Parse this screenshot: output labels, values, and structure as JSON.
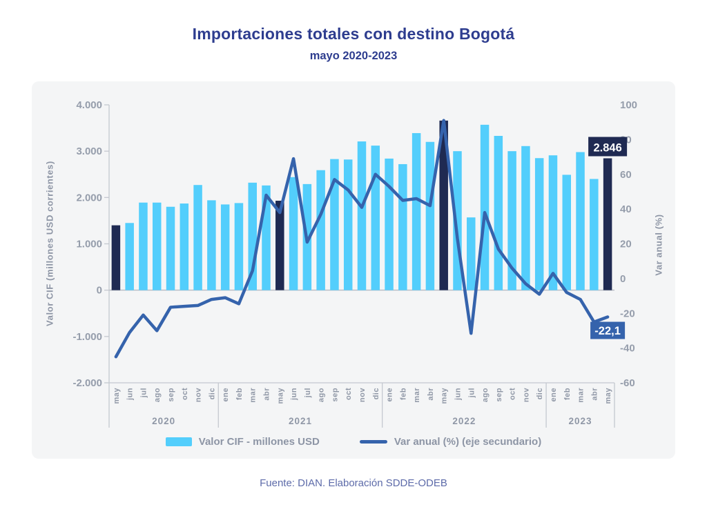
{
  "title": "Importaciones totales con destino Bogotá",
  "subtitle": "mayo 2020-2023",
  "footer": "Fuente: DIAN. Elaboración SDDE-ODEB",
  "colors": {
    "bar": "#53cefc",
    "bar_highlight": "#1f2a52",
    "line": "#3563ac",
    "title": "#2e3d8f",
    "axis_text": "#959dab",
    "axis_line": "#c4c8cf",
    "zero_line": "#b9bec6"
  },
  "chart_data": {
    "type": "combo-bar-line",
    "months": [
      "may",
      "jun",
      "jul",
      "ago",
      "sep",
      "oct",
      "nov",
      "dic",
      "ene",
      "feb",
      "mar",
      "abr",
      "may",
      "jun",
      "jul",
      "ago",
      "sep",
      "oct",
      "nov",
      "dic",
      "ene",
      "feb",
      "mar",
      "abr",
      "may",
      "jun",
      "jul",
      "ago",
      "sep",
      "oct",
      "nov",
      "dic",
      "ene",
      "feb",
      "mar",
      "abr",
      "may"
    ],
    "year_groups": [
      {
        "label": "2020",
        "count": 8
      },
      {
        "label": "2021",
        "count": 12
      },
      {
        "label": "2022",
        "count": 12
      },
      {
        "label": "2023",
        "count": 5
      }
    ],
    "series": [
      {
        "name": "Valor CIF - millones USD",
        "type": "bar",
        "axis": "left",
        "values": [
          1400,
          1450,
          1890,
          1890,
          1800,
          1870,
          2270,
          1940,
          1850,
          1880,
          2320,
          2260,
          1930,
          2440,
          2290,
          2590,
          2830,
          2820,
          3210,
          3120,
          2840,
          2720,
          3390,
          3200,
          3660,
          3000,
          1570,
          3570,
          3330,
          3000,
          3110,
          2850,
          2910,
          2490,
          2980,
          2400,
          2846
        ],
        "highlight_indices": [
          0,
          12,
          24,
          36
        ]
      },
      {
        "name": "Var anual (%) (eje secundario)",
        "type": "line",
        "axis": "right",
        "values": [
          -45,
          -31,
          -21,
          -30,
          -16.5,
          -16,
          -15.5,
          -12,
          -11,
          -14.5,
          4.5,
          48,
          38,
          69,
          21,
          37,
          57,
          51,
          41,
          60,
          53,
          45,
          46,
          42,
          91,
          23,
          -31.5,
          38,
          17,
          6,
          -3,
          -9,
          3,
          -8,
          -12,
          -25,
          -22.1
        ]
      }
    ],
    "left_axis": {
      "title": "Valor CIF (millones USD corrientes)",
      "min": -2000,
      "max": 4000,
      "ticks": [
        {
          "v": 4000,
          "label": "4.000"
        },
        {
          "v": 3000,
          "label": "3.000"
        },
        {
          "v": 2000,
          "label": "2.000"
        },
        {
          "v": 1000,
          "label": "1.000"
        },
        {
          "v": 0,
          "label": "0"
        },
        {
          "v": -1000,
          "label": "-1.000"
        },
        {
          "v": -2000,
          "label": "-2.000"
        }
      ]
    },
    "right_axis": {
      "title": "Var anual (%)",
      "min": -60,
      "max": 100,
      "ticks": [
        {
          "v": 100,
          "label": "100"
        },
        {
          "v": 80,
          "label": "80"
        },
        {
          "v": 60,
          "label": "60"
        },
        {
          "v": 40,
          "label": "40"
        },
        {
          "v": 20,
          "label": "20"
        },
        {
          "v": 0,
          "label": "0"
        },
        {
          "v": -20,
          "label": "-20"
        },
        {
          "v": -40,
          "label": "-40"
        },
        {
          "v": -60,
          "label": "-60"
        }
      ]
    },
    "annotations": [
      {
        "text": "2.846",
        "attach": "bar",
        "index": 36
      },
      {
        "text": "-22,1",
        "attach": "line",
        "index": 36
      }
    ],
    "grid": "none",
    "legend_position": "bottom"
  },
  "legend": {
    "bar_label": "Valor CIF - millones USD",
    "line_label": "Var anual (%) (eje secundario)"
  }
}
